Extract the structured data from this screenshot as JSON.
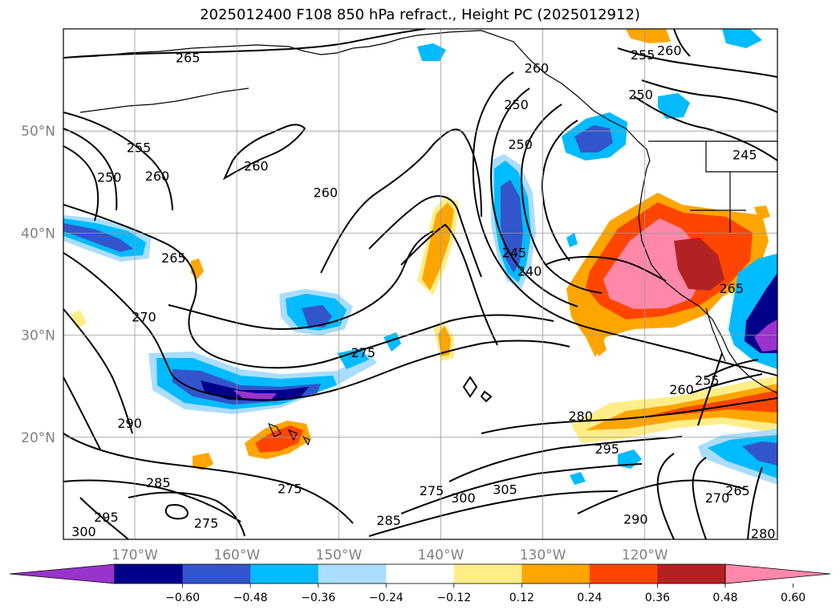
{
  "title": "2025012400 F108 850 hPa refract., Height PC (2025012912)",
  "map": {
    "lon_min": -177,
    "lon_max": -107,
    "lat_min": 10,
    "lat_max": 60,
    "lon_ticks": [
      {
        "lon": -170,
        "label": "170°W"
      },
      {
        "lon": -160,
        "label": "160°W"
      },
      {
        "lon": -150,
        "label": "150°W"
      },
      {
        "lon": -140,
        "label": "140°W"
      },
      {
        "lon": -130,
        "label": "130°W"
      },
      {
        "lon": -120,
        "label": "120°W"
      }
    ],
    "lat_ticks": [
      {
        "lat": 50,
        "label": "50°N"
      },
      {
        "lat": 40,
        "label": "40°N"
      },
      {
        "lat": 30,
        "label": "30°N"
      },
      {
        "lat": 20,
        "label": "20°N"
      }
    ],
    "gridlines": true
  },
  "colorbar": {
    "colors": [
      "#9933cc",
      "#00008b",
      "#3355cc",
      "#00bbff",
      "#aaddff",
      "#ffffff",
      "#ffee88",
      "#ffa500",
      "#ff4500",
      "#b22222",
      "#ff88aa"
    ],
    "labels": [
      "−0.60",
      "−0.48",
      "−0.36",
      "−0.24",
      "−0.12",
      "0.12",
      "0.24",
      "0.36",
      "0.48",
      "0.60"
    ],
    "extend": "both"
  },
  "contour_labels": [
    {
      "text": "265",
      "lon": -164.8,
      "lat": 57.2
    },
    {
      "text": "255",
      "lon": -169.6,
      "lat": 48.4
    },
    {
      "text": "250",
      "lon": -172.5,
      "lat": 45.5
    },
    {
      "text": "260",
      "lon": -167.8,
      "lat": 45.6
    },
    {
      "text": "260",
      "lon": -158.1,
      "lat": 46.6
    },
    {
      "text": "260",
      "lon": -151.3,
      "lat": 44.0
    },
    {
      "text": "265",
      "lon": -166.2,
      "lat": 37.6
    },
    {
      "text": "270",
      "lon": -169.1,
      "lat": 31.8
    },
    {
      "text": "275",
      "lon": -147.6,
      "lat": 28.3
    },
    {
      "text": "290",
      "lon": -170.5,
      "lat": 21.4
    },
    {
      "text": "285",
      "lon": -167.7,
      "lat": 15.6
    },
    {
      "text": "275",
      "lon": -154.8,
      "lat": 15.0
    },
    {
      "text": "275",
      "lon": -163.0,
      "lat": 11.6
    },
    {
      "text": "300",
      "lon": -175.0,
      "lat": 10.8
    },
    {
      "text": "295",
      "lon": -172.8,
      "lat": 12.2
    },
    {
      "text": "285",
      "lon": -145.1,
      "lat": 11.9
    },
    {
      "text": "275",
      "lon": -140.9,
      "lat": 14.8
    },
    {
      "text": "300",
      "lon": -137.8,
      "lat": 14.1
    },
    {
      "text": "305",
      "lon": -133.7,
      "lat": 14.9
    },
    {
      "text": "250",
      "lon": -132.6,
      "lat": 52.6
    },
    {
      "text": "250",
      "lon": -132.2,
      "lat": 48.7
    },
    {
      "text": "260",
      "lon": -130.6,
      "lat": 56.2
    },
    {
      "text": "250",
      "lon": -120.4,
      "lat": 53.6
    },
    {
      "text": "255",
      "lon": -120.2,
      "lat": 57.5
    },
    {
      "text": "260",
      "lon": -117.6,
      "lat": 57.9
    },
    {
      "text": "245",
      "lon": -110.2,
      "lat": 47.7
    },
    {
      "text": "245",
      "lon": -132.8,
      "lat": 38.1
    },
    {
      "text": "240",
      "lon": -131.3,
      "lat": 36.3
    },
    {
      "text": "265",
      "lon": -111.5,
      "lat": 34.6
    },
    {
      "text": "280",
      "lon": -126.3,
      "lat": 22.1
    },
    {
      "text": "295",
      "lon": -123.7,
      "lat": 18.9
    },
    {
      "text": "290",
      "lon": -120.9,
      "lat": 12.0
    },
    {
      "text": "260",
      "lon": -116.4,
      "lat": 24.7
    },
    {
      "text": "255",
      "lon": -113.9,
      "lat": 25.6
    },
    {
      "text": "270",
      "lon": -112.9,
      "lat": 14.1
    },
    {
      "text": "265",
      "lon": -110.9,
      "lat": 14.8
    },
    {
      "text": "280",
      "lon": -108.4,
      "lat": 10.6
    }
  ]
}
